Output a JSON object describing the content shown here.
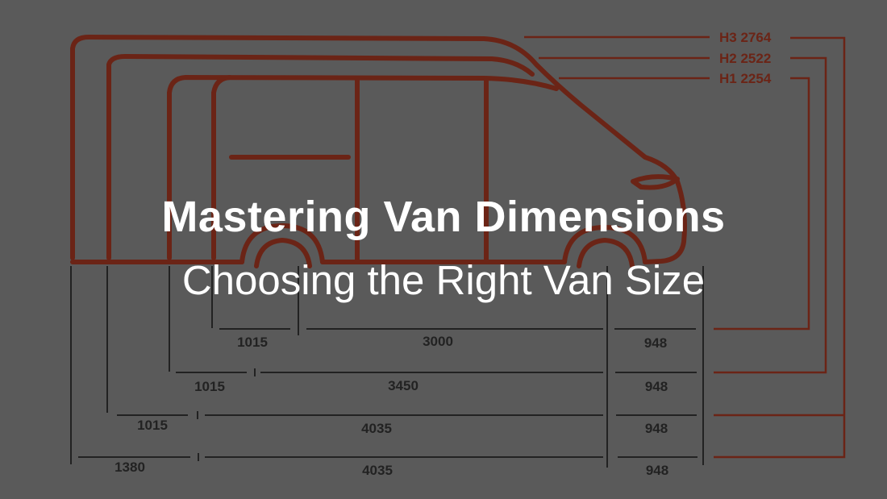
{
  "title": "Mastering Van Dimensions",
  "subtitle": "Choosing the Right Van Size",
  "colors": {
    "background": "#5a5a5a",
    "outline": "#6b2416",
    "dimension_lines": "#222222",
    "title_text": "#ffffff"
  },
  "heights": [
    {
      "label": "H3 2764"
    },
    {
      "label": "H2 2522"
    },
    {
      "label": "H1 2254"
    }
  ],
  "length_rows": [
    {
      "rear": "1015",
      "wheelbase": "3000",
      "front": "948"
    },
    {
      "rear": "1015",
      "wheelbase": "3450",
      "front": "948"
    },
    {
      "rear": "1015",
      "wheelbase": "4035",
      "front": "948"
    },
    {
      "rear": "1380",
      "wheelbase": "4035",
      "front": "948"
    }
  ]
}
